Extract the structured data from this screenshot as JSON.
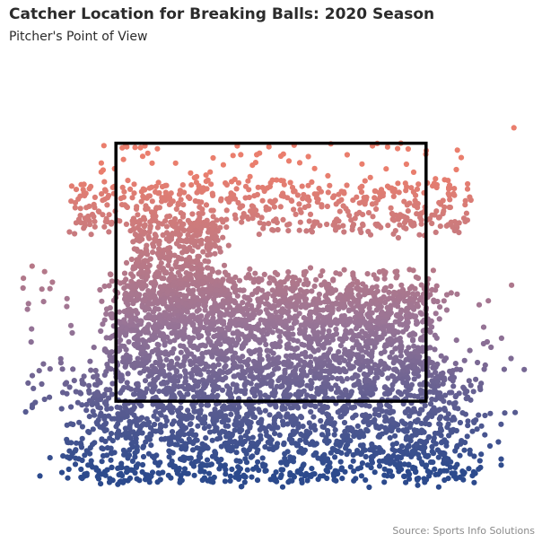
{
  "title": "Catcher Location for Breaking Balls: 2020 Season",
  "subtitle": "Pitcher's Point of View",
  "caption": "Source: Sports Info Solutions",
  "colors": {
    "top": "#ea7e6d",
    "middle": "#9a7596",
    "bottom": "#2c4a8d",
    "zone_outline": "#000000"
  },
  "chart_data": {
    "type": "scatter",
    "title": "Catcher Location for Breaking Balls: 2020 Season",
    "subtitle": "Pitcher's Point of View",
    "xlabel": "",
    "ylabel": "",
    "grid": false,
    "legend": "none",
    "xlim": [
      -2.5,
      2.5
    ],
    "ylim": [
      0.0,
      4.5
    ],
    "strike_zone": {
      "x": [
        -1.5,
        1.5
      ],
      "y": [
        1.0,
        3.85
      ]
    },
    "color_encoding": "vertical gradient: coral at top to dark blue at bottom",
    "density_profile": "sparse above zone, dense from middle of zone to below zone",
    "series": [
      {
        "values_sample": [
          [
            2.35,
            4.02
          ],
          [
            -1.22,
            3.82
          ],
          [
            -0.02,
            3.81
          ],
          [
            0.12,
            3.73
          ],
          [
            -1.15,
            3.63
          ],
          [
            -0.72,
            3.48
          ],
          [
            0.88,
            3.62
          ],
          [
            -0.35,
            3.45
          ],
          [
            0.55,
            3.49
          ],
          [
            1.38,
            3.53
          ],
          [
            1.72,
            3.36
          ],
          [
            -1.05,
            3.37
          ],
          [
            0.45,
            3.2
          ],
          [
            1.6,
            3.1
          ],
          [
            -1.3,
            3.15
          ],
          [
            -0.2,
            3.1
          ],
          [
            0.9,
            3.25
          ],
          [
            1.9,
            3.0
          ],
          [
            -1.9,
            2.85
          ],
          [
            -2.2,
            2.1
          ],
          [
            -2.35,
            1.2
          ],
          [
            2.45,
            1.35
          ],
          [
            2.2,
            0.55
          ],
          [
            -1.95,
            0.45
          ],
          [
            -0.8,
            0.2
          ],
          [
            0.3,
            0.1
          ],
          [
            1.1,
            0.25
          ],
          [
            -1.6,
            0.18
          ],
          [
            0.95,
            0.05
          ],
          [
            1.8,
            0.3
          ]
        ]
      }
    ]
  }
}
